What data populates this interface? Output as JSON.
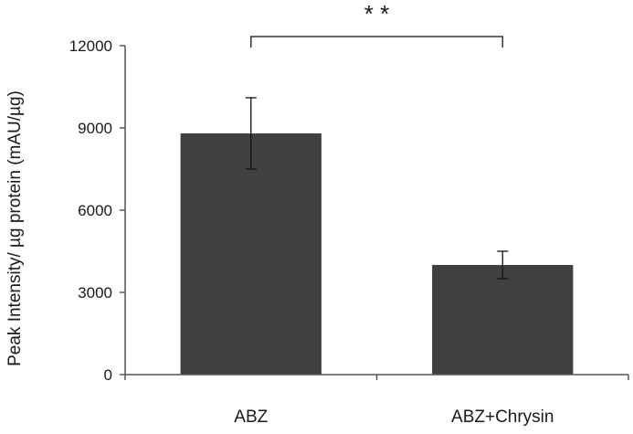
{
  "chart_data": {
    "type": "bar",
    "categories": [
      "ABZ",
      "ABZ+Chrysin"
    ],
    "values": [
      8800,
      4000
    ],
    "errors": [
      1300,
      500
    ],
    "ylabel": "Peak Intensity/ µg protein (mAU/µg)",
    "ylim": [
      0,
      12000
    ],
    "yticks": [
      0,
      3000,
      6000,
      9000,
      12000
    ],
    "grid": false,
    "bar_color": "#404040",
    "significance": {
      "label": "* *",
      "between": [
        "ABZ",
        "ABZ+Chrysin"
      ]
    }
  }
}
